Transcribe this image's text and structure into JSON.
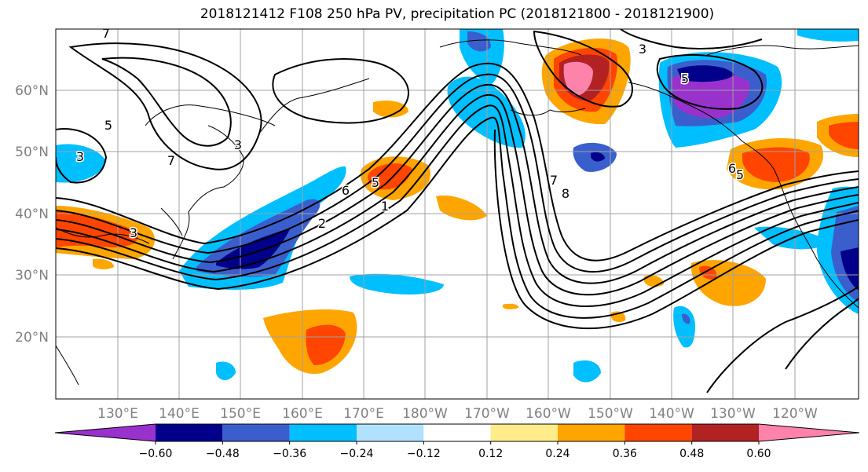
{
  "title": "2018121412 F108 250 hPa PV, precipitation PC (2018121800 - 2018121900)",
  "lat_labels": [
    "60°N",
    "50°N",
    "40°N",
    "30°N",
    "20°N"
  ],
  "lon_labels": [
    "130°E",
    "140°E",
    "150°E",
    "160°E",
    "170°E",
    "180°W",
    "170°W",
    "160°W",
    "150°W",
    "140°W",
    "130°W",
    "120°W"
  ],
  "colorbar": {
    "colors": [
      "#9932CC",
      "#00008B",
      "#3A5FCD",
      "#00BFFF",
      "#B0E2FF",
      "#FFFFFF",
      "#FFEC8B",
      "#FFA500",
      "#FF4500",
      "#B22222",
      "#FF82AB"
    ],
    "ticks": [
      "−0.60",
      "−0.48",
      "−0.36",
      "−0.24",
      "−0.12",
      "0.12",
      "0.24",
      "0.36",
      "0.48",
      "0.60"
    ]
  },
  "contour_labels": [
    "7",
    "5",
    "3",
    "7",
    "3",
    "6",
    "5",
    "1",
    "2",
    "3",
    "7",
    "8",
    "3",
    "5",
    "6",
    "5"
  ],
  "colors": {
    "grid": "#a0a0a0",
    "tick_text": "#808080",
    "contour": "#000000"
  }
}
